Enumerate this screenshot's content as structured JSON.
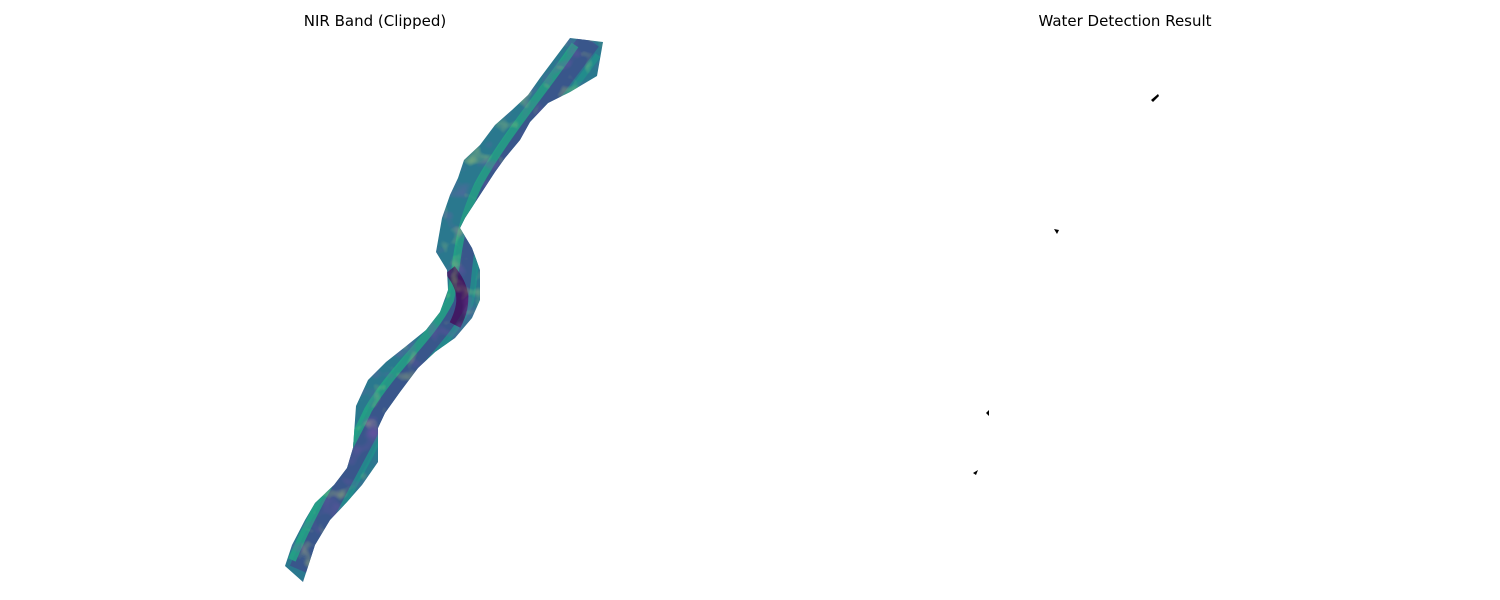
{
  "panels": [
    {
      "title": "NIR Band (Clipped)",
      "colormap": "viridis"
    },
    {
      "title": "Water Detection Result",
      "colors": {
        "background": "#ffffff",
        "water": "#000000"
      }
    }
  ]
}
